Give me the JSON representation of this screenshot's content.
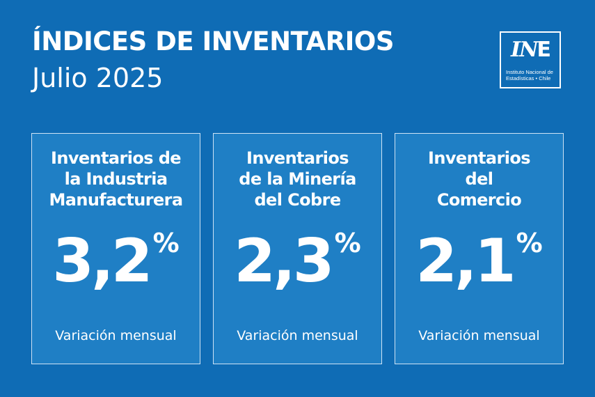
{
  "header": {
    "title": "ÍNDICES DE INVENTARIOS",
    "subtitle": "Julio 2025"
  },
  "logo": {
    "mark_i": "I",
    "mark_n": "N",
    "mark_e": "E",
    "caption_line1": "Instituto Nacional de",
    "caption_line2": "Estadísticas • Chile"
  },
  "cards": [
    {
      "title_lines": [
        "Inventarios de",
        "la Industria",
        "Manufacturera"
      ],
      "value": "3,2",
      "unit": "%",
      "label": "Variación mensual"
    },
    {
      "title_lines": [
        "Inventarios",
        "de la Minería",
        "del Cobre"
      ],
      "value": "2,3",
      "unit": "%",
      "label": "Variación mensual"
    },
    {
      "title_lines": [
        "Inventarios",
        "del",
        "Comercio"
      ],
      "value": "2,1",
      "unit": "%",
      "label": "Variación mensual"
    }
  ],
  "colors": {
    "background": "#0f6cb5",
    "card": "#1f7fc5",
    "card_border": "#cfe3f4",
    "text": "#ffffff"
  }
}
